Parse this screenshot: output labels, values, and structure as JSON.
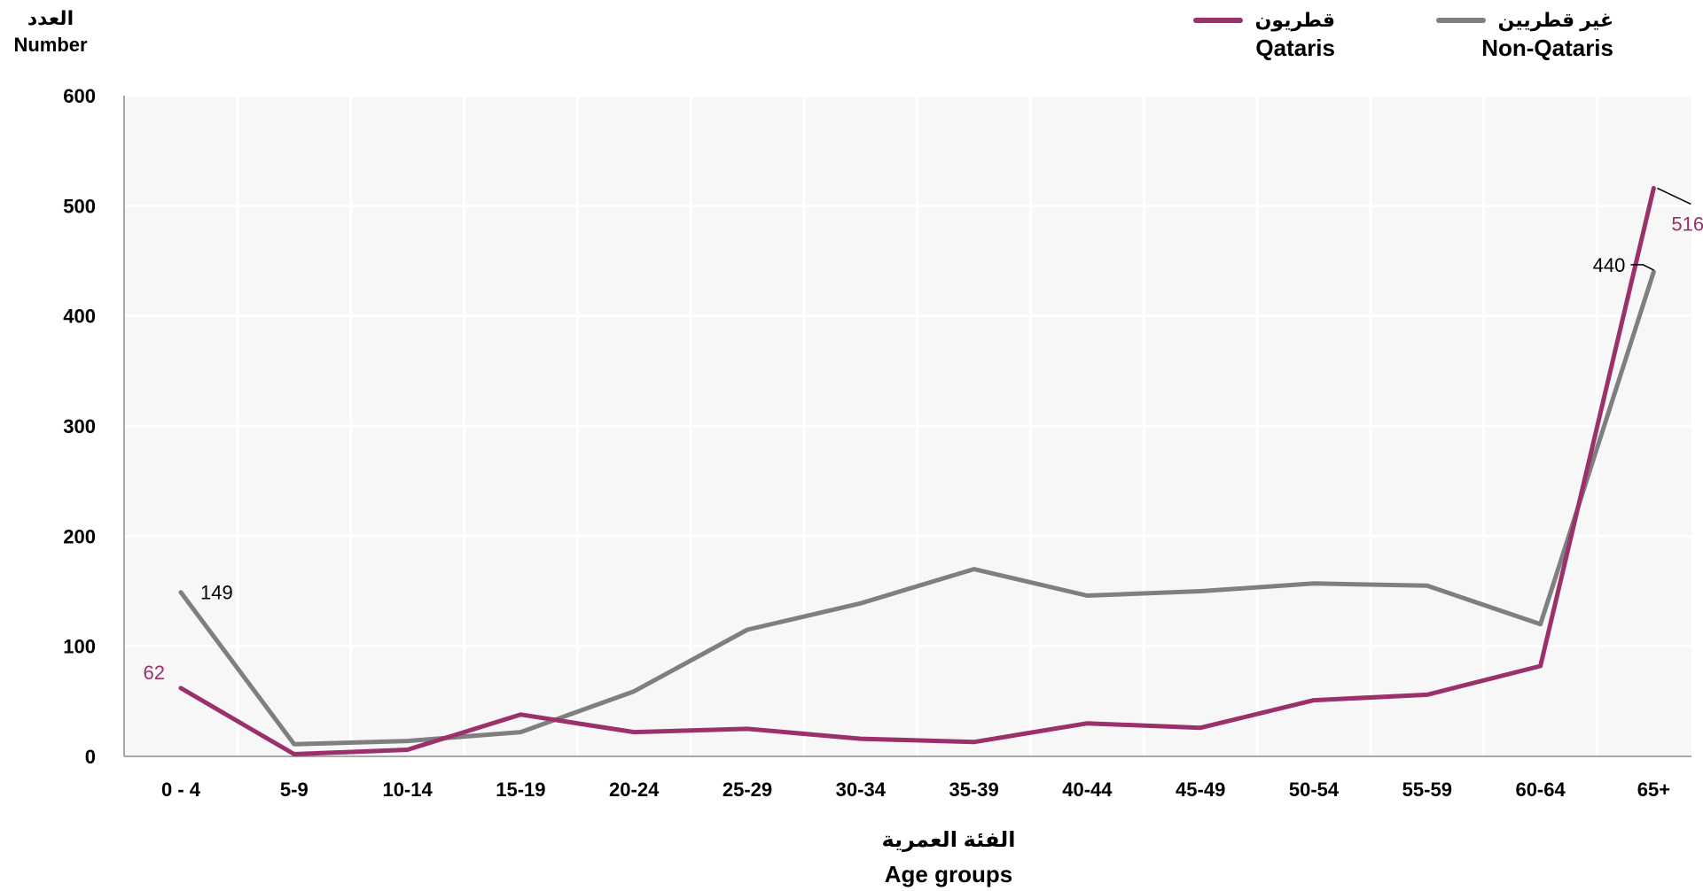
{
  "y_axis_label": {
    "arabic": "العدد",
    "english": "Number"
  },
  "x_axis_label": {
    "arabic": "الفئة العمرية",
    "english": "Age groups"
  },
  "legend": [
    {
      "arabic": "قطريون",
      "english": "Qataris",
      "color": "#9b306b"
    },
    {
      "arabic": "غير قطريين",
      "english": "Non-Qataris",
      "color": "#7f7f7f"
    }
  ],
  "chart_data": {
    "type": "line",
    "categories": [
      "0 - 4",
      "5-9",
      "10-14",
      "15-19",
      "20-24",
      "25-29",
      "30-34",
      "35-39",
      "40-44",
      "45-49",
      "50-54",
      "55-59",
      "60-64",
      "65+"
    ],
    "ylim": [
      0,
      600
    ],
    "yticks": [
      0,
      100,
      200,
      300,
      400,
      500,
      600
    ],
    "grid": true,
    "legend_position": "top-right",
    "series": [
      {
        "name": "Qataris",
        "color": "#9b306b",
        "values": [
          62,
          2,
          6,
          38,
          22,
          25,
          16,
          13,
          30,
          26,
          51,
          56,
          82,
          516
        ],
        "labeled_points": {
          "0": "62",
          "13": "516"
        }
      },
      {
        "name": "Non-Qataris",
        "color": "#7f7f7f",
        "values": [
          149,
          11,
          14,
          22,
          59,
          115,
          139,
          170,
          146,
          150,
          157,
          155,
          120,
          440
        ],
        "labeled_points": {
          "0": "149",
          "13": "440"
        }
      }
    ]
  }
}
